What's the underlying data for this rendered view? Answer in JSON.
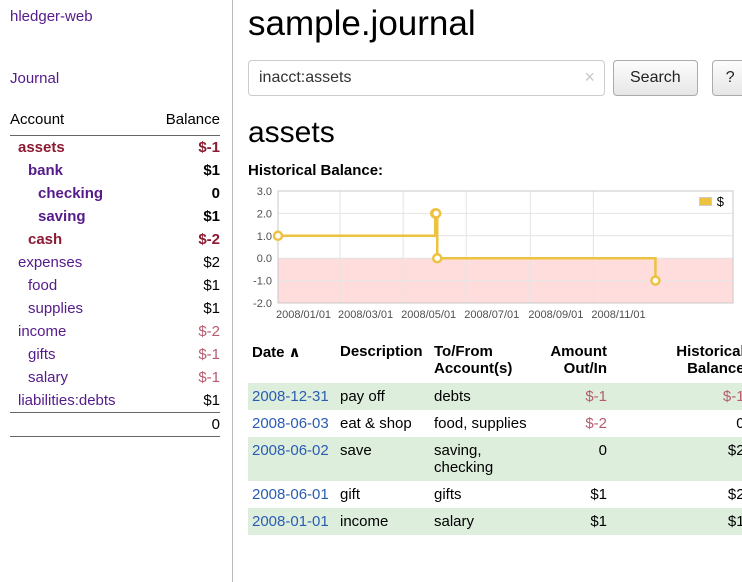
{
  "colors": {
    "link_purple": "#551a8b",
    "link_blue": "#2a5db2",
    "negative_dark": "#8b1a32",
    "negative_light": "#b65c6e",
    "row_shading_green": "#ddeedd",
    "chart_line": "#edc240",
    "chart_negative_region": "#ffdddd"
  },
  "sidebar": {
    "app_title": "hledger-web",
    "journal_link": "Journal",
    "accounts_table": {
      "headers": [
        "Account",
        "Balance"
      ],
      "rows": [
        {
          "name": "assets",
          "indent": 0,
          "balance": "$-1",
          "bold": true,
          "name_class": "negdark",
          "balance_class": "negdark"
        },
        {
          "name": "bank",
          "indent": 1,
          "balance": "$1",
          "bold": true,
          "name_class": "purple",
          "balance_class": "black"
        },
        {
          "name": "checking",
          "indent": 2,
          "balance": "0",
          "bold": true,
          "name_class": "purple",
          "balance_class": "black"
        },
        {
          "name": "saving",
          "indent": 2,
          "balance": "$1",
          "bold": true,
          "name_class": "purple",
          "balance_class": "black"
        },
        {
          "name": "cash",
          "indent": 1,
          "balance": "$-2",
          "bold": true,
          "name_class": "negdark",
          "balance_class": "negdark"
        },
        {
          "name": "expenses",
          "indent": 0,
          "balance": "$2",
          "bold": false,
          "name_class": "purple",
          "balance_class": "black"
        },
        {
          "name": "food",
          "indent": 1,
          "balance": "$1",
          "bold": false,
          "name_class": "purple",
          "balance_class": "black"
        },
        {
          "name": "supplies",
          "indent": 1,
          "balance": "$1",
          "bold": false,
          "name_class": "purple",
          "balance_class": "black"
        },
        {
          "name": "income",
          "indent": 0,
          "balance": "$-2",
          "bold": false,
          "name_class": "purple",
          "balance_class": "neglight"
        },
        {
          "name": "gifts",
          "indent": 1,
          "balance": "$-1",
          "bold": false,
          "name_class": "purple",
          "balance_class": "neglight"
        },
        {
          "name": "salary",
          "indent": 1,
          "balance": "$-1",
          "bold": false,
          "name_class": "purple",
          "balance_class": "neglight"
        },
        {
          "name": "liabilities:debts",
          "indent": 0,
          "balance": "$1",
          "bold": false,
          "name_class": "purple",
          "balance_class": "black"
        }
      ],
      "total": "0"
    }
  },
  "main": {
    "title": "sample.journal",
    "account_heading": "assets"
  },
  "search": {
    "value": "inacct:assets",
    "clear_icon": "×",
    "search_button": "Search",
    "help_button": "?"
  },
  "chart_data": {
    "type": "line",
    "style": "step",
    "title": "Historical Balance:",
    "legend_position": "top-right",
    "grid": true,
    "ylim": [
      -2,
      3
    ],
    "yticks": [
      {
        "value": 3,
        "label": "3.0"
      },
      {
        "value": 2,
        "label": "2.0"
      },
      {
        "value": 1,
        "label": "1.0"
      },
      {
        "value": 0,
        "label": "0.0"
      },
      {
        "value": -1,
        "label": "-1.0"
      },
      {
        "value": -2,
        "label": "-2.0"
      }
    ],
    "x_domain_days": [
      0,
      440
    ],
    "xticks": [
      {
        "day": 0,
        "label": "2008/01/01"
      },
      {
        "day": 60,
        "label": "2008/03/01"
      },
      {
        "day": 121,
        "label": "2008/05/01"
      },
      {
        "day": 182,
        "label": "2008/07/01"
      },
      {
        "day": 244,
        "label": "2008/09/01"
      },
      {
        "day": 305,
        "label": "2008/11/01"
      }
    ],
    "series": [
      {
        "name": "$",
        "color": "#edc240",
        "points": [
          {
            "date": "2008-01-01",
            "day": 0,
            "value": 1
          },
          {
            "date": "2008-06-01",
            "day": 152,
            "value": 2
          },
          {
            "date": "2008-06-02",
            "day": 153,
            "value": 2
          },
          {
            "date": "2008-06-03",
            "day": 154,
            "value": 0
          },
          {
            "date": "2008-12-31",
            "day": 365,
            "value": -1
          }
        ]
      }
    ],
    "negative_region": {
      "from": 0,
      "to": -2,
      "color": "#ffdddd"
    }
  },
  "register": {
    "sort_icon": "∧",
    "headers": [
      {
        "label": "Date",
        "align": "left",
        "sorted": "asc"
      },
      {
        "label": "Description",
        "align": "left"
      },
      {
        "label": "To/From Account(s)",
        "align": "left"
      },
      {
        "label": "Amount Out/In",
        "align": "right"
      },
      {
        "label": "Historical Balance",
        "align": "right"
      }
    ],
    "rows": [
      {
        "date": "2008-12-31",
        "description": "pay off",
        "accounts": "debts",
        "amount": "$-1",
        "amount_negative": true,
        "balance": "$-1",
        "balance_negative": true
      },
      {
        "date": "2008-06-03",
        "description": "eat & shop",
        "accounts": "food, supplies",
        "amount": "$-2",
        "amount_negative": true,
        "balance": "0",
        "balance_negative": false
      },
      {
        "date": "2008-06-02",
        "description": "save",
        "accounts": "saving, checking",
        "amount": "0",
        "amount_negative": false,
        "balance": "$2",
        "balance_negative": false
      },
      {
        "date": "2008-06-01",
        "description": "gift",
        "accounts": "gifts",
        "amount": "$1",
        "amount_negative": false,
        "balance": "$2",
        "balance_negative": false
      },
      {
        "date": "2008-01-01",
        "description": "income",
        "accounts": "salary",
        "amount": "$1",
        "amount_negative": false,
        "balance": "$1",
        "balance_negative": false
      }
    ]
  }
}
